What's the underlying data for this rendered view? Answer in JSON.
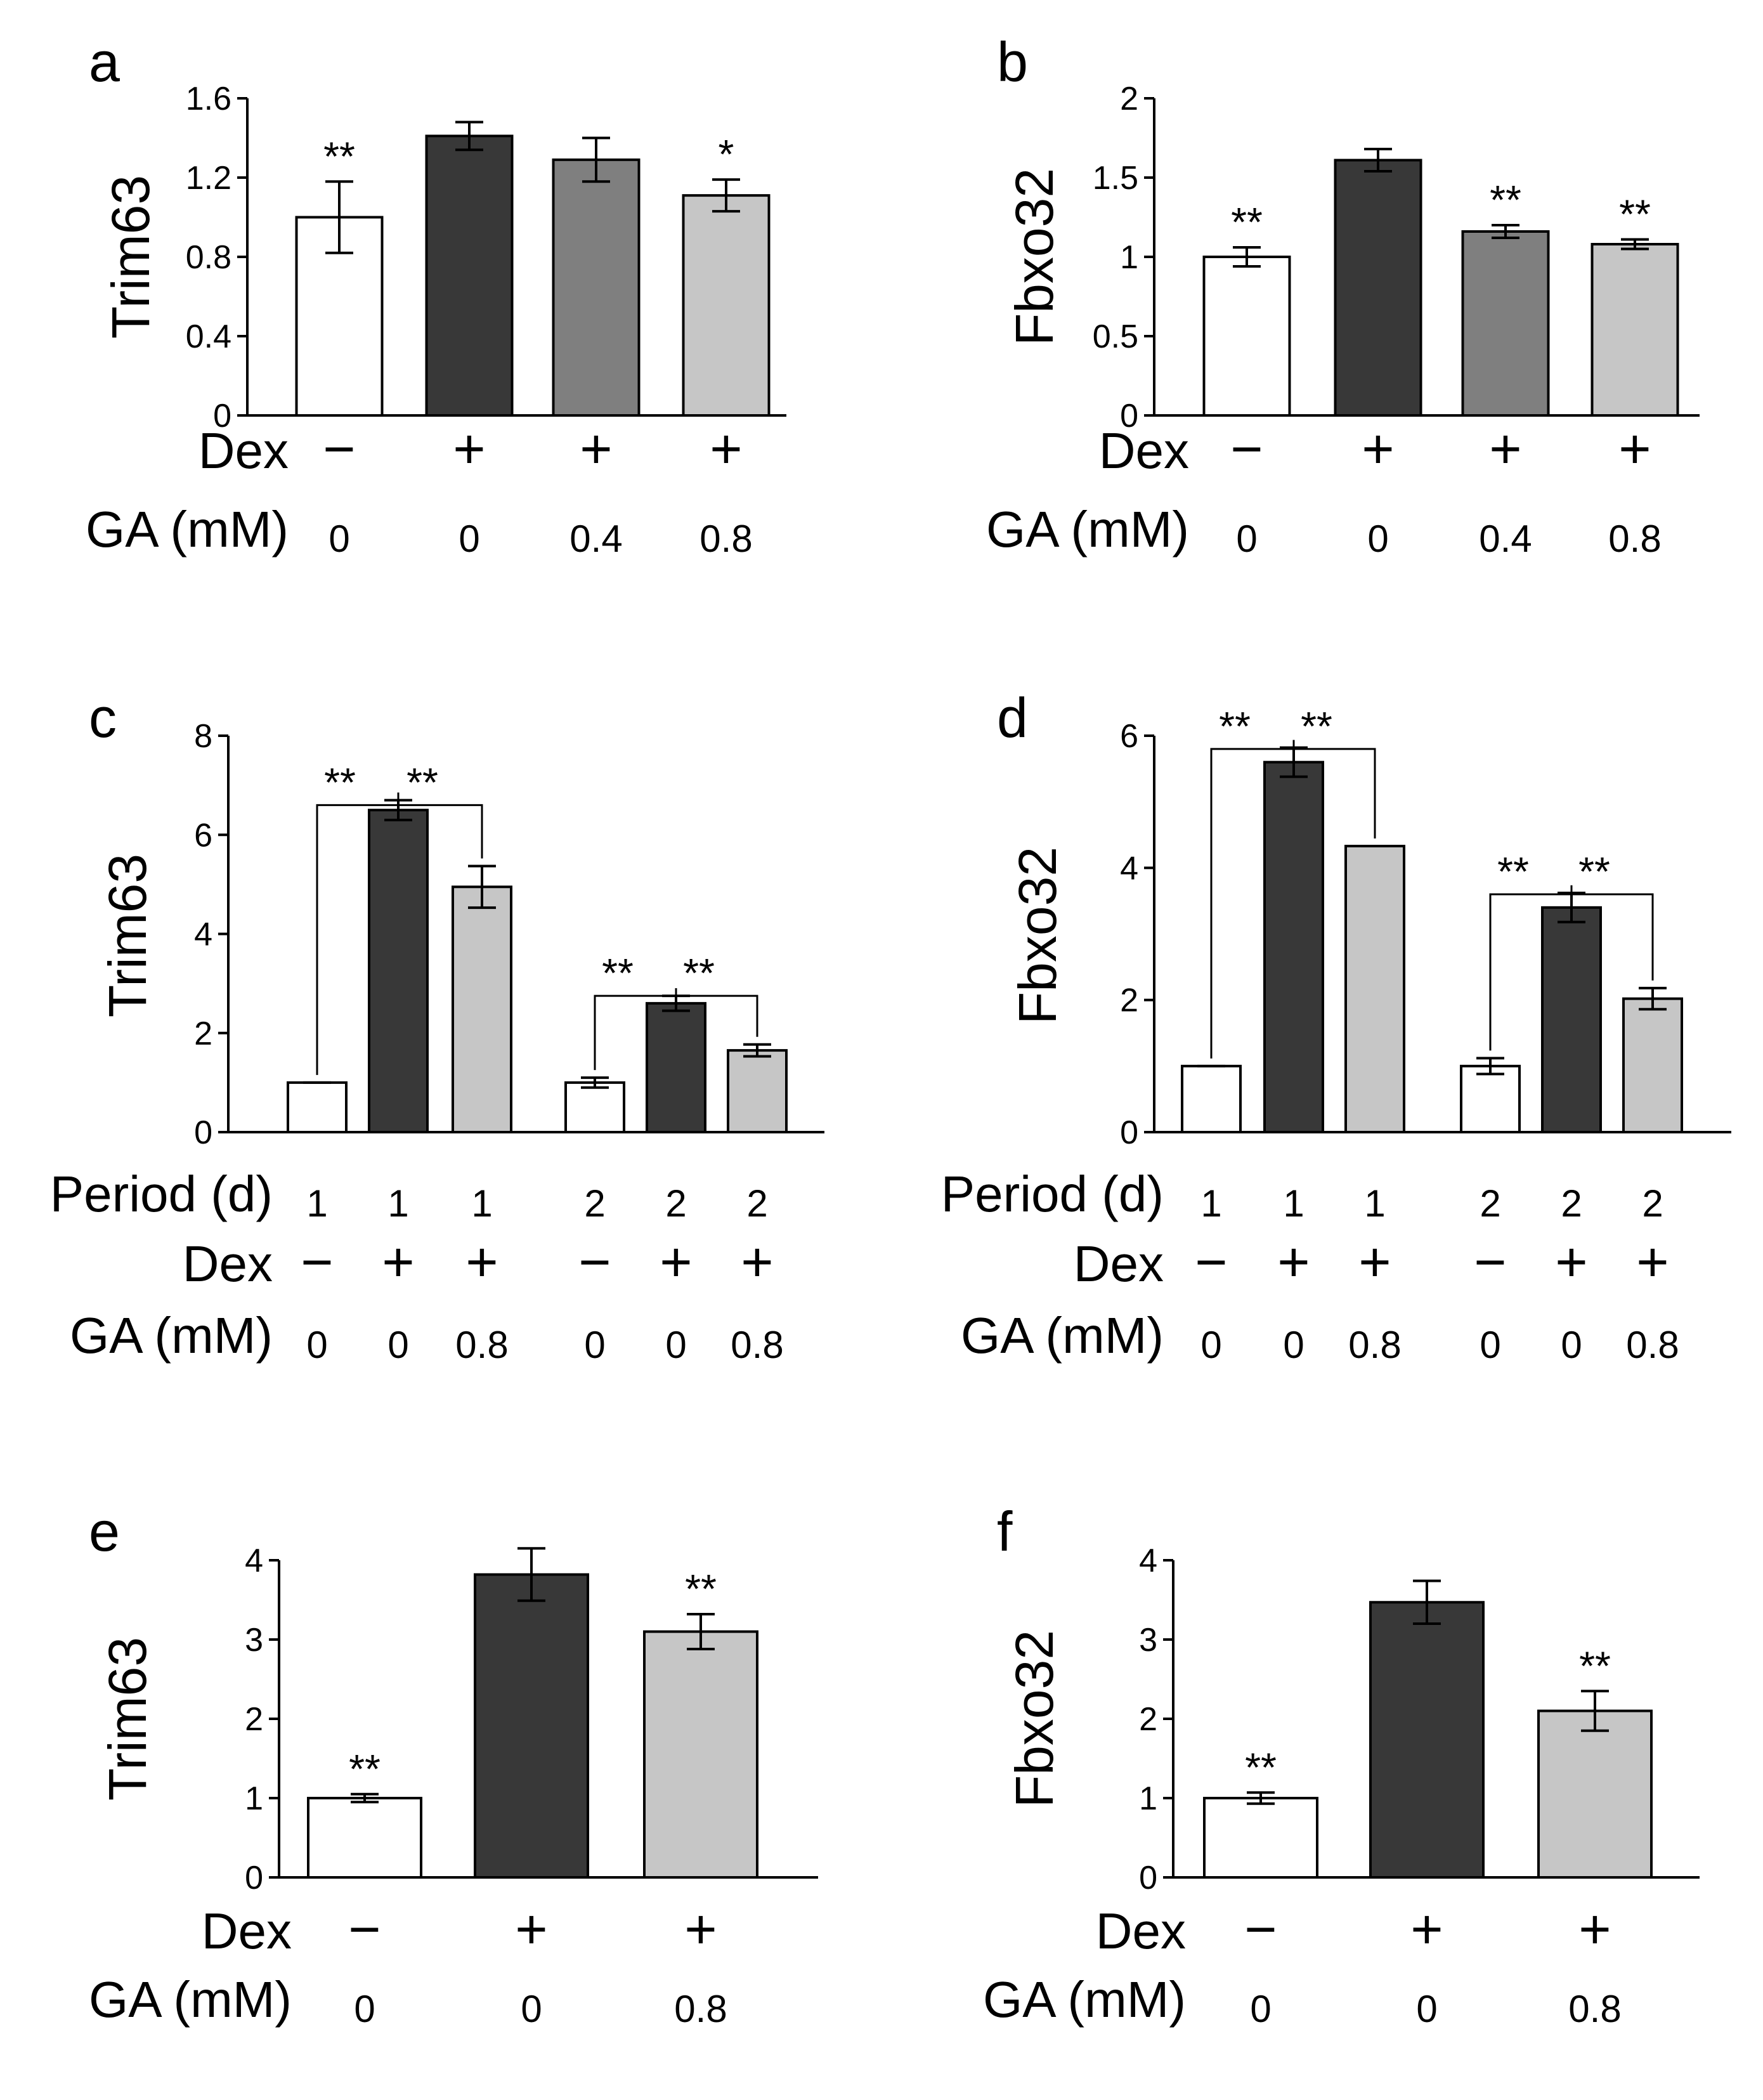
{
  "colors": {
    "white": "#ffffff",
    "black": "#383838",
    "darkgray": "#7f7f7f",
    "lightgray": "#c6c6c6"
  },
  "chart_data": [
    {
      "panel": "a",
      "type": "bar",
      "ylabel": "Trim63",
      "ylim": [
        0,
        1.6
      ],
      "yticks": [
        "0",
        "0.4",
        "0.8",
        "1.2",
        "1.6"
      ],
      "yticks_values": [
        0,
        0.4,
        0.8,
        1.2,
        1.6
      ],
      "values": [
        1.0,
        1.41,
        1.29,
        1.11
      ],
      "errors": [
        0.18,
        0.07,
        0.11,
        0.08
      ],
      "fills": [
        "white",
        "black",
        "darkgray",
        "lightgray"
      ],
      "significance": [
        "**",
        "",
        "",
        "*"
      ],
      "brackets": [],
      "conditions": [
        {
          "label": "Dex",
          "kind": "sign",
          "values": [
            "−",
            "+",
            "+",
            "+"
          ]
        },
        {
          "label": "GA (mM)",
          "kind": "text",
          "values": [
            "0",
            "0",
            "0.4",
            "0.8"
          ]
        }
      ]
    },
    {
      "panel": "b",
      "type": "bar",
      "ylabel": "Fbxo32",
      "ylim": [
        0,
        2
      ],
      "yticks": [
        "0",
        "0.5",
        "1",
        "1.5",
        "2"
      ],
      "yticks_values": [
        0,
        0.5,
        1,
        1.5,
        2
      ],
      "values": [
        1.0,
        1.61,
        1.16,
        1.08
      ],
      "errors": [
        0.06,
        0.07,
        0.04,
        0.03
      ],
      "fills": [
        "white",
        "black",
        "darkgray",
        "lightgray"
      ],
      "significance": [
        "**",
        "",
        "**",
        "**"
      ],
      "brackets": [],
      "conditions": [
        {
          "label": "Dex",
          "kind": "sign",
          "values": [
            "−",
            "+",
            "+",
            "+"
          ]
        },
        {
          "label": "GA (mM)",
          "kind": "text",
          "values": [
            "0",
            "0",
            "0.4",
            "0.8"
          ]
        }
      ]
    },
    {
      "panel": "c",
      "type": "bar",
      "ylabel": "Trim63",
      "ylim": [
        0,
        8
      ],
      "yticks": [
        "0",
        "2",
        "4",
        "6",
        "8"
      ],
      "yticks_values": [
        0,
        2,
        4,
        6,
        8
      ],
      "values": [
        1.0,
        6.5,
        4.95,
        1.0,
        2.6,
        1.65
      ],
      "errors": [
        0.0,
        0.2,
        0.42,
        0.1,
        0.15,
        0.12
      ],
      "fills": [
        "white",
        "black",
        "lightgray",
        "white",
        "black",
        "lightgray"
      ],
      "significance": [
        "",
        "",
        "",
        "",
        "",
        ""
      ],
      "brackets": [
        {
          "from": 0,
          "to": 1,
          "label": "**",
          "level": 6.6
        },
        {
          "from": 1,
          "to": 2,
          "label": "**",
          "level": 6.6
        },
        {
          "from": 3,
          "to": 4,
          "label": "**",
          "level": 2.75
        },
        {
          "from": 4,
          "to": 5,
          "label": "**",
          "level": 2.75
        }
      ],
      "conditions": [
        {
          "label": "Period (d)",
          "kind": "text",
          "values": [
            "1",
            "1",
            "1",
            "2",
            "2",
            "2"
          ]
        },
        {
          "label": "Dex",
          "kind": "sign",
          "values": [
            "−",
            "+",
            "+",
            "−",
            "+",
            "+"
          ]
        },
        {
          "label": "GA (mM)",
          "kind": "text",
          "values": [
            "0",
            "0",
            "0.8",
            "0",
            "0",
            "0.8"
          ]
        }
      ]
    },
    {
      "panel": "d",
      "type": "bar",
      "ylabel": "Fbxo32",
      "ylim": [
        0,
        6
      ],
      "yticks": [
        "0",
        "2",
        "4",
        "6"
      ],
      "yticks_values": [
        0,
        2,
        4,
        6
      ],
      "values": [
        1.0,
        5.6,
        4.33,
        1.0,
        3.4,
        2.02
      ],
      "errors": [
        0.0,
        0.22,
        0.0,
        0.12,
        0.22,
        0.16
      ],
      "fills": [
        "white",
        "black",
        "lightgray",
        "white",
        "black",
        "lightgray"
      ],
      "significance": [
        "",
        "",
        "",
        "",
        "",
        ""
      ],
      "brackets": [
        {
          "from": 0,
          "to": 1,
          "label": "**",
          "level": 5.8
        },
        {
          "from": 1,
          "to": 2,
          "label": "**",
          "level": 5.8
        },
        {
          "from": 3,
          "to": 4,
          "label": "**",
          "level": 3.6
        },
        {
          "from": 4,
          "to": 5,
          "label": "**",
          "level": 3.6
        }
      ],
      "conditions": [
        {
          "label": "Period (d)",
          "kind": "text",
          "values": [
            "1",
            "1",
            "1",
            "2",
            "2",
            "2"
          ]
        },
        {
          "label": "Dex",
          "kind": "sign",
          "values": [
            "−",
            "+",
            "+",
            "−",
            "+",
            "+"
          ]
        },
        {
          "label": "GA (mM)",
          "kind": "text",
          "values": [
            "0",
            "0",
            "0.8",
            "0",
            "0",
            "0.8"
          ]
        }
      ]
    },
    {
      "panel": "e",
      "type": "bar",
      "ylabel": "Trim63",
      "ylim": [
        0,
        4
      ],
      "yticks": [
        "0",
        "1",
        "2",
        "3",
        "4"
      ],
      "yticks_values": [
        0,
        1,
        2,
        3,
        4
      ],
      "values": [
        1.0,
        3.82,
        3.1
      ],
      "errors": [
        0.05,
        0.33,
        0.22
      ],
      "fills": [
        "white",
        "black",
        "lightgray"
      ],
      "significance": [
        "**",
        "",
        "**"
      ],
      "brackets": [],
      "conditions": [
        {
          "label": "Dex",
          "kind": "sign",
          "values": [
            "−",
            "+",
            "+"
          ]
        },
        {
          "label": "GA (mM)",
          "kind": "text",
          "values": [
            "0",
            "0",
            "0.8"
          ]
        }
      ]
    },
    {
      "panel": "f",
      "type": "bar",
      "ylabel": "Fbxo32",
      "ylim": [
        0,
        4
      ],
      "yticks": [
        "0",
        "1",
        "2",
        "3",
        "4"
      ],
      "yticks_values": [
        0,
        1,
        2,
        3,
        4
      ],
      "values": [
        1.0,
        3.47,
        2.1
      ],
      "errors": [
        0.07,
        0.27,
        0.25
      ],
      "fills": [
        "white",
        "black",
        "lightgray"
      ],
      "significance": [
        "**",
        "",
        "**"
      ],
      "brackets": [],
      "conditions": [
        {
          "label": "Dex",
          "kind": "sign",
          "values": [
            "−",
            "+",
            "+"
          ]
        },
        {
          "label": "GA (mM)",
          "kind": "text",
          "values": [
            "0",
            "0",
            "0.8"
          ]
        }
      ]
    }
  ]
}
